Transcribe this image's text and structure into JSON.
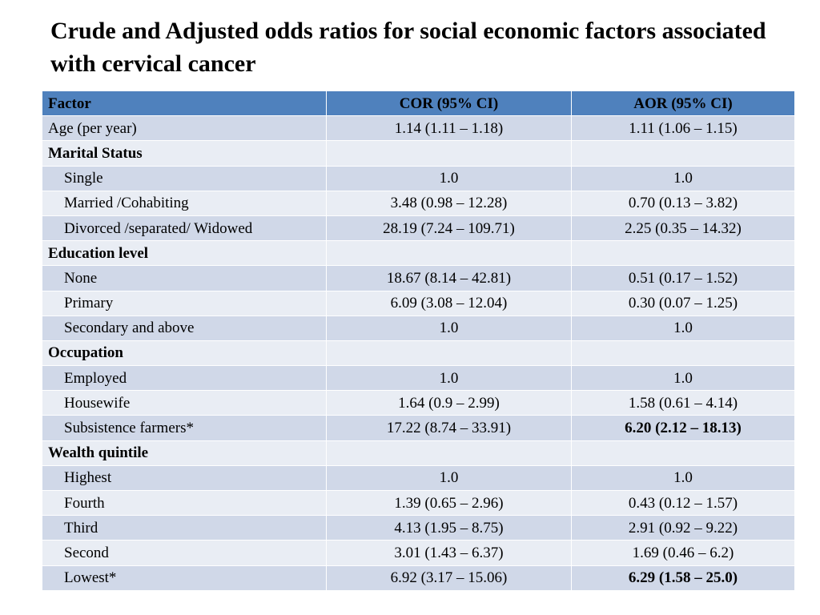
{
  "title": "Crude and Adjusted odds ratios for social economic factors associated with cervical cancer",
  "table": {
    "headers": [
      "Factor",
      "COR (95% CI)",
      "AOR (95% CI)"
    ],
    "rows": [
      {
        "factor": "Age (per year)",
        "cor": "1.14 (1.11 – 1.18)",
        "aor": "1.11 (1.06 – 1.15)",
        "group": false,
        "indent": false,
        "aor_bold": false
      },
      {
        "factor": "Marital Status",
        "cor": "",
        "aor": "",
        "group": true,
        "indent": false,
        "aor_bold": false
      },
      {
        "factor": "Single",
        "cor": "1.0",
        "aor": "1.0",
        "group": false,
        "indent": true,
        "aor_bold": false
      },
      {
        "factor": "Married /Cohabiting",
        "cor": "3.48 (0.98 – 12.28)",
        "aor": "0.70 (0.13 – 3.82)",
        "group": false,
        "indent": true,
        "aor_bold": false
      },
      {
        "factor": "Divorced /separated/ Widowed",
        "cor": "28.19 (7.24 – 109.71)",
        "aor": "2.25 (0.35 – 14.32)",
        "group": false,
        "indent": true,
        "aor_bold": false
      },
      {
        "factor": "Education level",
        "cor": "",
        "aor": "",
        "group": true,
        "indent": false,
        "aor_bold": false
      },
      {
        "factor": "None",
        "cor": "18.67 (8.14 – 42.81)",
        "aor": "0.51 (0.17 – 1.52)",
        "group": false,
        "indent": true,
        "aor_bold": false
      },
      {
        "factor": "Primary",
        "cor": "6.09 (3.08 – 12.04)",
        "aor": "0.30 (0.07 – 1.25)",
        "group": false,
        "indent": true,
        "aor_bold": false
      },
      {
        "factor": "Secondary and above",
        "cor": "1.0",
        "aor": "1.0",
        "group": false,
        "indent": true,
        "aor_bold": false
      },
      {
        "factor": "Occupation",
        "cor": "",
        "aor": "",
        "group": true,
        "indent": false,
        "aor_bold": false
      },
      {
        "factor": "Employed",
        "cor": "1.0",
        "aor": "1.0",
        "group": false,
        "indent": true,
        "aor_bold": false
      },
      {
        "factor": "Housewife",
        "cor": "1.64 (0.9 – 2.99)",
        "aor": "1.58 (0.61 – 4.14)",
        "group": false,
        "indent": true,
        "aor_bold": false
      },
      {
        "factor": "Subsistence farmers*",
        "cor": "17.22 (8.74 – 33.91)",
        "aor": "6.20 (2.12 – 18.13)",
        "group": false,
        "indent": true,
        "aor_bold": true
      },
      {
        "factor": "Wealth quintile",
        "cor": "",
        "aor": "",
        "group": true,
        "indent": false,
        "aor_bold": false
      },
      {
        "factor": "Highest",
        "cor": "1.0",
        "aor": "1.0",
        "group": false,
        "indent": true,
        "aor_bold": false
      },
      {
        "factor": "Fourth",
        "cor": "1.39 (0.65 – 2.96)",
        "aor": "0.43 (0.12 – 1.57)",
        "group": false,
        "indent": true,
        "aor_bold": false
      },
      {
        "factor": "Third",
        "cor": "4.13 (1.95 – 8.75)",
        "aor": "2.91 (0.92 – 9.22)",
        "group": false,
        "indent": true,
        "aor_bold": false
      },
      {
        "factor": "Second",
        "cor": "3.01 (1.43 – 6.37)",
        "aor": "1.69  (0.46 – 6.2)",
        "group": false,
        "indent": true,
        "aor_bold": false
      },
      {
        "factor": "Lowest*",
        "cor": "6.92 (3.17 – 15.06)",
        "aor": "6.29  (1.58 – 25.0)",
        "group": false,
        "indent": true,
        "aor_bold": true
      }
    ]
  }
}
